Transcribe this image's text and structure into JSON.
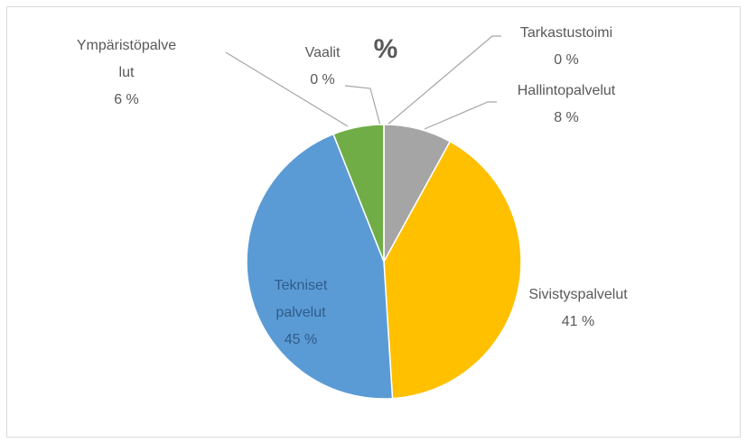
{
  "chart_data": {
    "type": "pie",
    "title": "%",
    "categories": [
      "Tarkastustoimi",
      "Hallintopalvelut",
      "Sivistyspalvelut",
      "Tekniset palvelut",
      "Ympäristöpalvelut",
      "Vaalit"
    ],
    "values": [
      0,
      8,
      41,
      45,
      6,
      0
    ],
    "value_labels": [
      "0 %",
      "8 %",
      "41 %",
      "45 %",
      "6 %",
      "0 %"
    ],
    "colors": [
      "#4472c4",
      "#a5a5a5",
      "#ffc000",
      "#5b9bd5",
      "#70ad47",
      "#ed7d31"
    ]
  }
}
